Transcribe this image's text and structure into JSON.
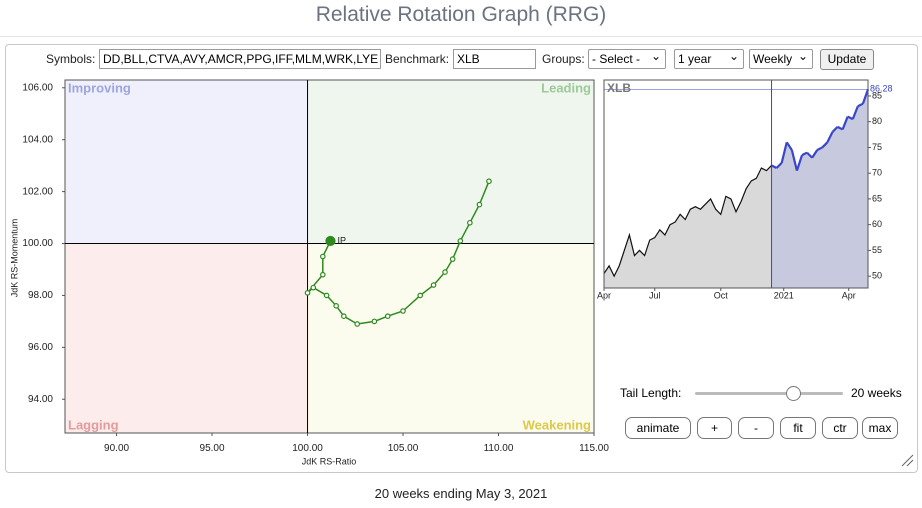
{
  "page": {
    "title": "Relative Rotation Graph (RRG)",
    "footer": "20 weeks ending May 3, 2021"
  },
  "controls": {
    "symbols_label": "Symbols:",
    "symbols": "DD,BLL,CTVA,AVY,AMCR,PPG,IFF,MLM,WRK,LYE",
    "benchmark_label": "Benchmark:",
    "benchmark": "XLB",
    "groups_label": "Groups:",
    "groups": "- Select -",
    "period": "1 year",
    "frequency": "Weekly",
    "update": "Update",
    "tail_label": "Tail Length:",
    "tail_length": {
      "value": 20,
      "label": "20 weeks"
    },
    "buttons": [
      "animate",
      "+",
      "-",
      "fit",
      "ctr",
      "max"
    ]
  },
  "chart_data": [
    {
      "type": "rrg",
      "x_label": "JdK RS-Ratio",
      "y_label": "JdK RS-Momentum",
      "quadrants": [
        {
          "name": "Improving",
          "color": "#eff0fb",
          "label_color": "#9ea4de"
        },
        {
          "name": "Leading",
          "color": "#eff6ee",
          "label_color": "#9dca98"
        },
        {
          "name": "Lagging",
          "color": "#fcecec",
          "label_color": "#e39b9b"
        },
        {
          "name": "Weakening",
          "color": "#fbfbee",
          "label_color": "#ddc94a"
        }
      ],
      "center": [
        100,
        100
      ],
      "xlim": [
        87.3,
        115
      ],
      "ylim": [
        92.7,
        106.3
      ],
      "xticks": [
        {
          "value": 90,
          "label": "90.00"
        },
        {
          "value": 95,
          "label": "95.00"
        },
        {
          "value": 100,
          "label": "100.00"
        },
        {
          "value": 105,
          "label": "105.00"
        },
        {
          "value": 110,
          "label": "110.00"
        },
        {
          "value": 115,
          "label": "115.00"
        }
      ],
      "yticks": [
        {
          "value": 94,
          "label": "94.00"
        },
        {
          "value": 96,
          "label": "96.00"
        },
        {
          "value": 98,
          "label": "98.00"
        },
        {
          "value": 100,
          "label": "100.00"
        },
        {
          "value": 102,
          "label": "102.00"
        },
        {
          "value": 104,
          "label": "104.00"
        },
        {
          "value": 106,
          "label": "106.00"
        }
      ],
      "series": [
        {
          "name": "IP",
          "color": "#2e8a1e",
          "x": [
            109.5,
            109.0,
            108.5,
            108.0,
            107.6,
            107.2,
            106.6,
            105.9,
            105.0,
            104.2,
            103.5,
            102.6,
            101.9,
            101.5,
            101.0,
            100.3,
            100.0,
            100.8,
            100.8,
            101.2
          ],
          "values": [
            102.4,
            101.5,
            100.8,
            100.1,
            99.4,
            98.9,
            98.4,
            98.0,
            97.4,
            97.2,
            97.0,
            96.9,
            97.2,
            97.6,
            98.0,
            98.3,
            98.1,
            98.8,
            99.5,
            100.1
          ]
        }
      ]
    },
    {
      "type": "area",
      "title": "XLB",
      "color": "#111111",
      "fill": "#d9d9d9",
      "highlight_color": "#3a46c8",
      "highlight_fill": "#c7c9de",
      "xlim": [
        0,
        52
      ],
      "ylim": [
        47.7,
        88.1
      ],
      "xticks": [
        {
          "value": 0,
          "label": "Apr"
        },
        {
          "value": 10,
          "label": "Jul"
        },
        {
          "value": 23,
          "label": "Oct"
        },
        {
          "value": 35.4,
          "label": "2021"
        },
        {
          "value": 48.2,
          "label": "Apr"
        }
      ],
      "yticks": [
        50,
        55,
        60,
        65,
        70,
        75,
        80,
        85
      ],
      "values": [
        50.5,
        52,
        50,
        52,
        55,
        58,
        54,
        55,
        54,
        57,
        57.5,
        59,
        58,
        60,
        60.5,
        62,
        61,
        63,
        63.5,
        63,
        64,
        65,
        63,
        62,
        65.5,
        65,
        62.5,
        64.5,
        67,
        68.5,
        69,
        71,
        70.5,
        71.5,
        71,
        72,
        76,
        74.5,
        70.5,
        73.5,
        74,
        73,
        74.5,
        75,
        76,
        78,
        79,
        78.5,
        81,
        80.5,
        83,
        83.5,
        86.28
      ]
    }
  ]
}
